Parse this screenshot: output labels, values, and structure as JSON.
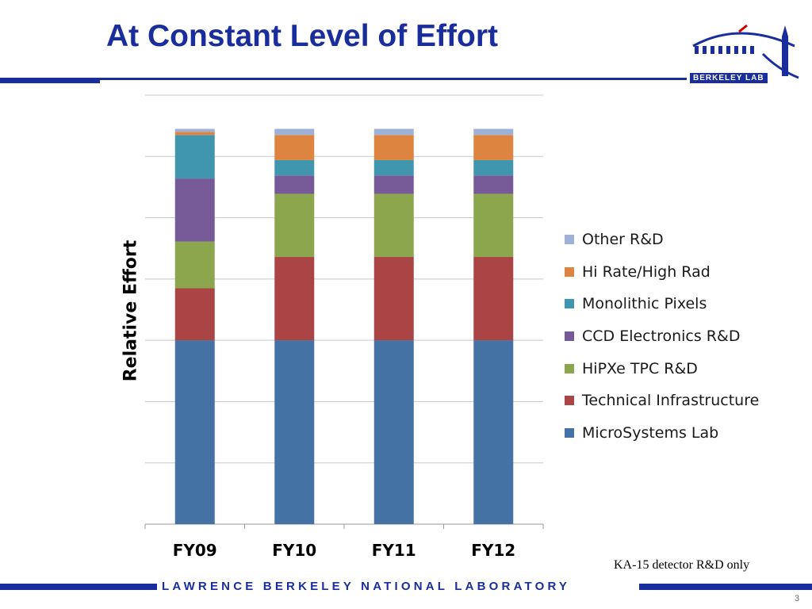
{
  "slide": {
    "title": "At Constant Level of Effort",
    "logo_text": "BERKELEY LAB",
    "note": "KA-15 detector R&D only",
    "footer": "LAWRENCE BERKELEY NATIONAL LABORATORY",
    "page_number": "3",
    "colors": {
      "title": "#1a2d9c",
      "rule": "#1a2d9c"
    }
  },
  "chart_data": {
    "type": "bar",
    "stacked": true,
    "title": "",
    "xlabel": "",
    "ylabel": "Relative Effort",
    "ylim": [
      0,
      7
    ],
    "grid": true,
    "legend_position": "right",
    "categories": [
      "FY09",
      "FY10",
      "FY11",
      "FY12"
    ],
    "series": [
      {
        "name": "MicroSystems Lab",
        "color": "#4472a4",
        "values": [
          3.0,
          3.0,
          3.0,
          3.0
        ]
      },
      {
        "name": "Technical Infrastructure",
        "color": "#ab4444",
        "values": [
          0.85,
          1.36,
          1.36,
          1.36
        ]
      },
      {
        "name": "HiPXe TPC R&D",
        "color": "#8ba64d",
        "values": [
          0.76,
          1.03,
          1.03,
          1.03
        ]
      },
      {
        "name": "CCD Electronics R&D",
        "color": "#765a97",
        "values": [
          1.03,
          0.3,
          0.3,
          0.3
        ]
      },
      {
        "name": "Monolithic Pixels",
        "color": "#4196af",
        "values": [
          0.71,
          0.25,
          0.25,
          0.25
        ]
      },
      {
        "name": "Hi Rate/High  Rad",
        "color": "#de8441",
        "values": [
          0.05,
          0.41,
          0.41,
          0.41
        ]
      },
      {
        "name": "Other R&D",
        "color": "#9eb2d8",
        "values": [
          0.05,
          0.1,
          0.1,
          0.1
        ]
      }
    ]
  }
}
